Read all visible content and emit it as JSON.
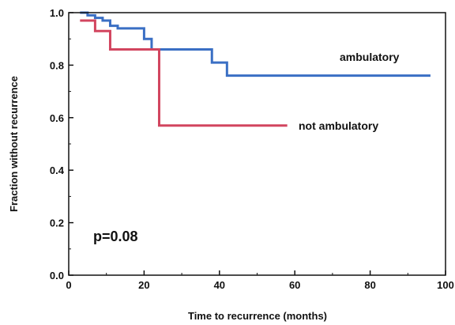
{
  "chart_data": {
    "type": "line",
    "subtype": "kaplan-meier step",
    "xlabel": "Time to recurrence (months)",
    "ylabel": "Fraction without recurrence",
    "xlim": [
      0,
      100
    ],
    "ylim": [
      0.0,
      1.0
    ],
    "x_ticks": [
      0,
      20,
      40,
      60,
      80,
      100
    ],
    "y_ticks": [
      0.0,
      0.2,
      0.4,
      0.6,
      0.8,
      1.0
    ],
    "x_tick_labels": [
      "0",
      "20",
      "40",
      "60",
      "80",
      "100"
    ],
    "y_tick_labels": [
      "0.0",
      "0.2",
      "0.4",
      "0.6",
      "0.8",
      "1.0"
    ],
    "grid": false,
    "annotation": "p=0.08",
    "series": [
      {
        "name": "ambulatory",
        "color": "#3a6fc4",
        "points": [
          [
            3,
            1.0
          ],
          [
            5,
            0.99
          ],
          [
            7,
            0.98
          ],
          [
            9,
            0.97
          ],
          [
            11,
            0.95
          ],
          [
            13,
            0.94
          ],
          [
            20,
            0.9
          ],
          [
            22,
            0.86
          ],
          [
            38,
            0.81
          ],
          [
            42,
            0.76
          ],
          [
            96,
            0.76
          ]
        ]
      },
      {
        "name": "not ambulatory",
        "color": "#d2455f",
        "points": [
          [
            3,
            0.97
          ],
          [
            7,
            0.93
          ],
          [
            11,
            0.86
          ],
          [
            24,
            0.57
          ],
          [
            58,
            0.57
          ]
        ]
      }
    ]
  }
}
